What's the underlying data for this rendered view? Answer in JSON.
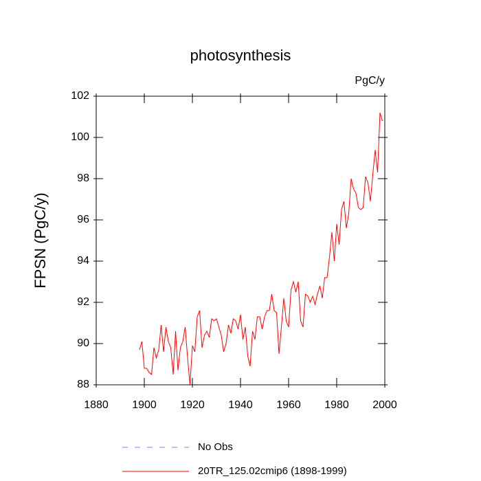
{
  "chart_data": {
    "type": "line",
    "title": "photosynthesis",
    "unit_label": "PgC/y",
    "y_label": "FPSN  (PgC/y)",
    "x": [
      1898,
      1899,
      1900,
      1901,
      1902,
      1903,
      1904,
      1905,
      1906,
      1907,
      1908,
      1909,
      1910,
      1911,
      1912,
      1913,
      1914,
      1915,
      1916,
      1917,
      1918,
      1919,
      1920,
      1921,
      1922,
      1923,
      1924,
      1925,
      1926,
      1927,
      1928,
      1929,
      1930,
      1931,
      1932,
      1933,
      1934,
      1935,
      1936,
      1937,
      1938,
      1939,
      1940,
      1941,
      1942,
      1943,
      1944,
      1945,
      1946,
      1947,
      1948,
      1949,
      1950,
      1951,
      1952,
      1953,
      1954,
      1955,
      1956,
      1957,
      1958,
      1959,
      1960,
      1961,
      1962,
      1963,
      1964,
      1965,
      1966,
      1967,
      1968,
      1969,
      1970,
      1971,
      1972,
      1973,
      1974,
      1975,
      1976,
      1977,
      1978,
      1979,
      1980,
      1981,
      1982,
      1983,
      1984,
      1985,
      1986,
      1987,
      1988,
      1989,
      1990,
      1991,
      1992,
      1993,
      1994,
      1995,
      1996,
      1997,
      1998,
      1999
    ],
    "series": [
      {
        "name": "20TR_125.02cmip6 (1898-1999)",
        "color": "#ff0000",
        "values": [
          89.7,
          90.1,
          88.8,
          88.8,
          88.6,
          88.5,
          89.8,
          89.3,
          89.7,
          90.9,
          89.6,
          90.8,
          90.1,
          89.8,
          88.5,
          90.6,
          88.7,
          89.8,
          90.1,
          90.8,
          89.3,
          88.0,
          89.9,
          89.6,
          91.3,
          91.6,
          89.8,
          90.4,
          90.6,
          90.3,
          91.2,
          91.1,
          91.2,
          90.8,
          90.4,
          89.6,
          90.0,
          90.9,
          90.5,
          91.2,
          91.1,
          90.7,
          91.4,
          90.2,
          90.8,
          89.4,
          88.9,
          90.6,
          90.2,
          91.3,
          91.3,
          90.7,
          91.3,
          91.6,
          91.6,
          92.4,
          91.6,
          91.5,
          89.5,
          90.8,
          92.2,
          91.1,
          90.8,
          92.6,
          93.0,
          92.5,
          93.0,
          91.1,
          90.8,
          92.4,
          92.3,
          92.0,
          92.3,
          91.9,
          92.4,
          92.8,
          92.2,
          93.2,
          93.2,
          94.2,
          95.4,
          94.0,
          95.8,
          94.8,
          96.5,
          96.9,
          95.6,
          96.3,
          98.0,
          97.5,
          97.3,
          96.6,
          96.5,
          96.6,
          98.1,
          97.8,
          96.9,
          98.2,
          99.4,
          98.3,
          101.2,
          100.8
        ]
      }
    ],
    "obs_legend": {
      "name": "No Obs",
      "color": "#7f7fff",
      "dashed": true
    },
    "xlim": [
      1880,
      2000
    ],
    "xticks": [
      1880,
      1900,
      1920,
      1940,
      1960,
      1980,
      2000
    ],
    "ylim": [
      88,
      102
    ],
    "yticks": [
      88,
      90,
      92,
      94,
      96,
      98,
      100,
      102
    ]
  }
}
